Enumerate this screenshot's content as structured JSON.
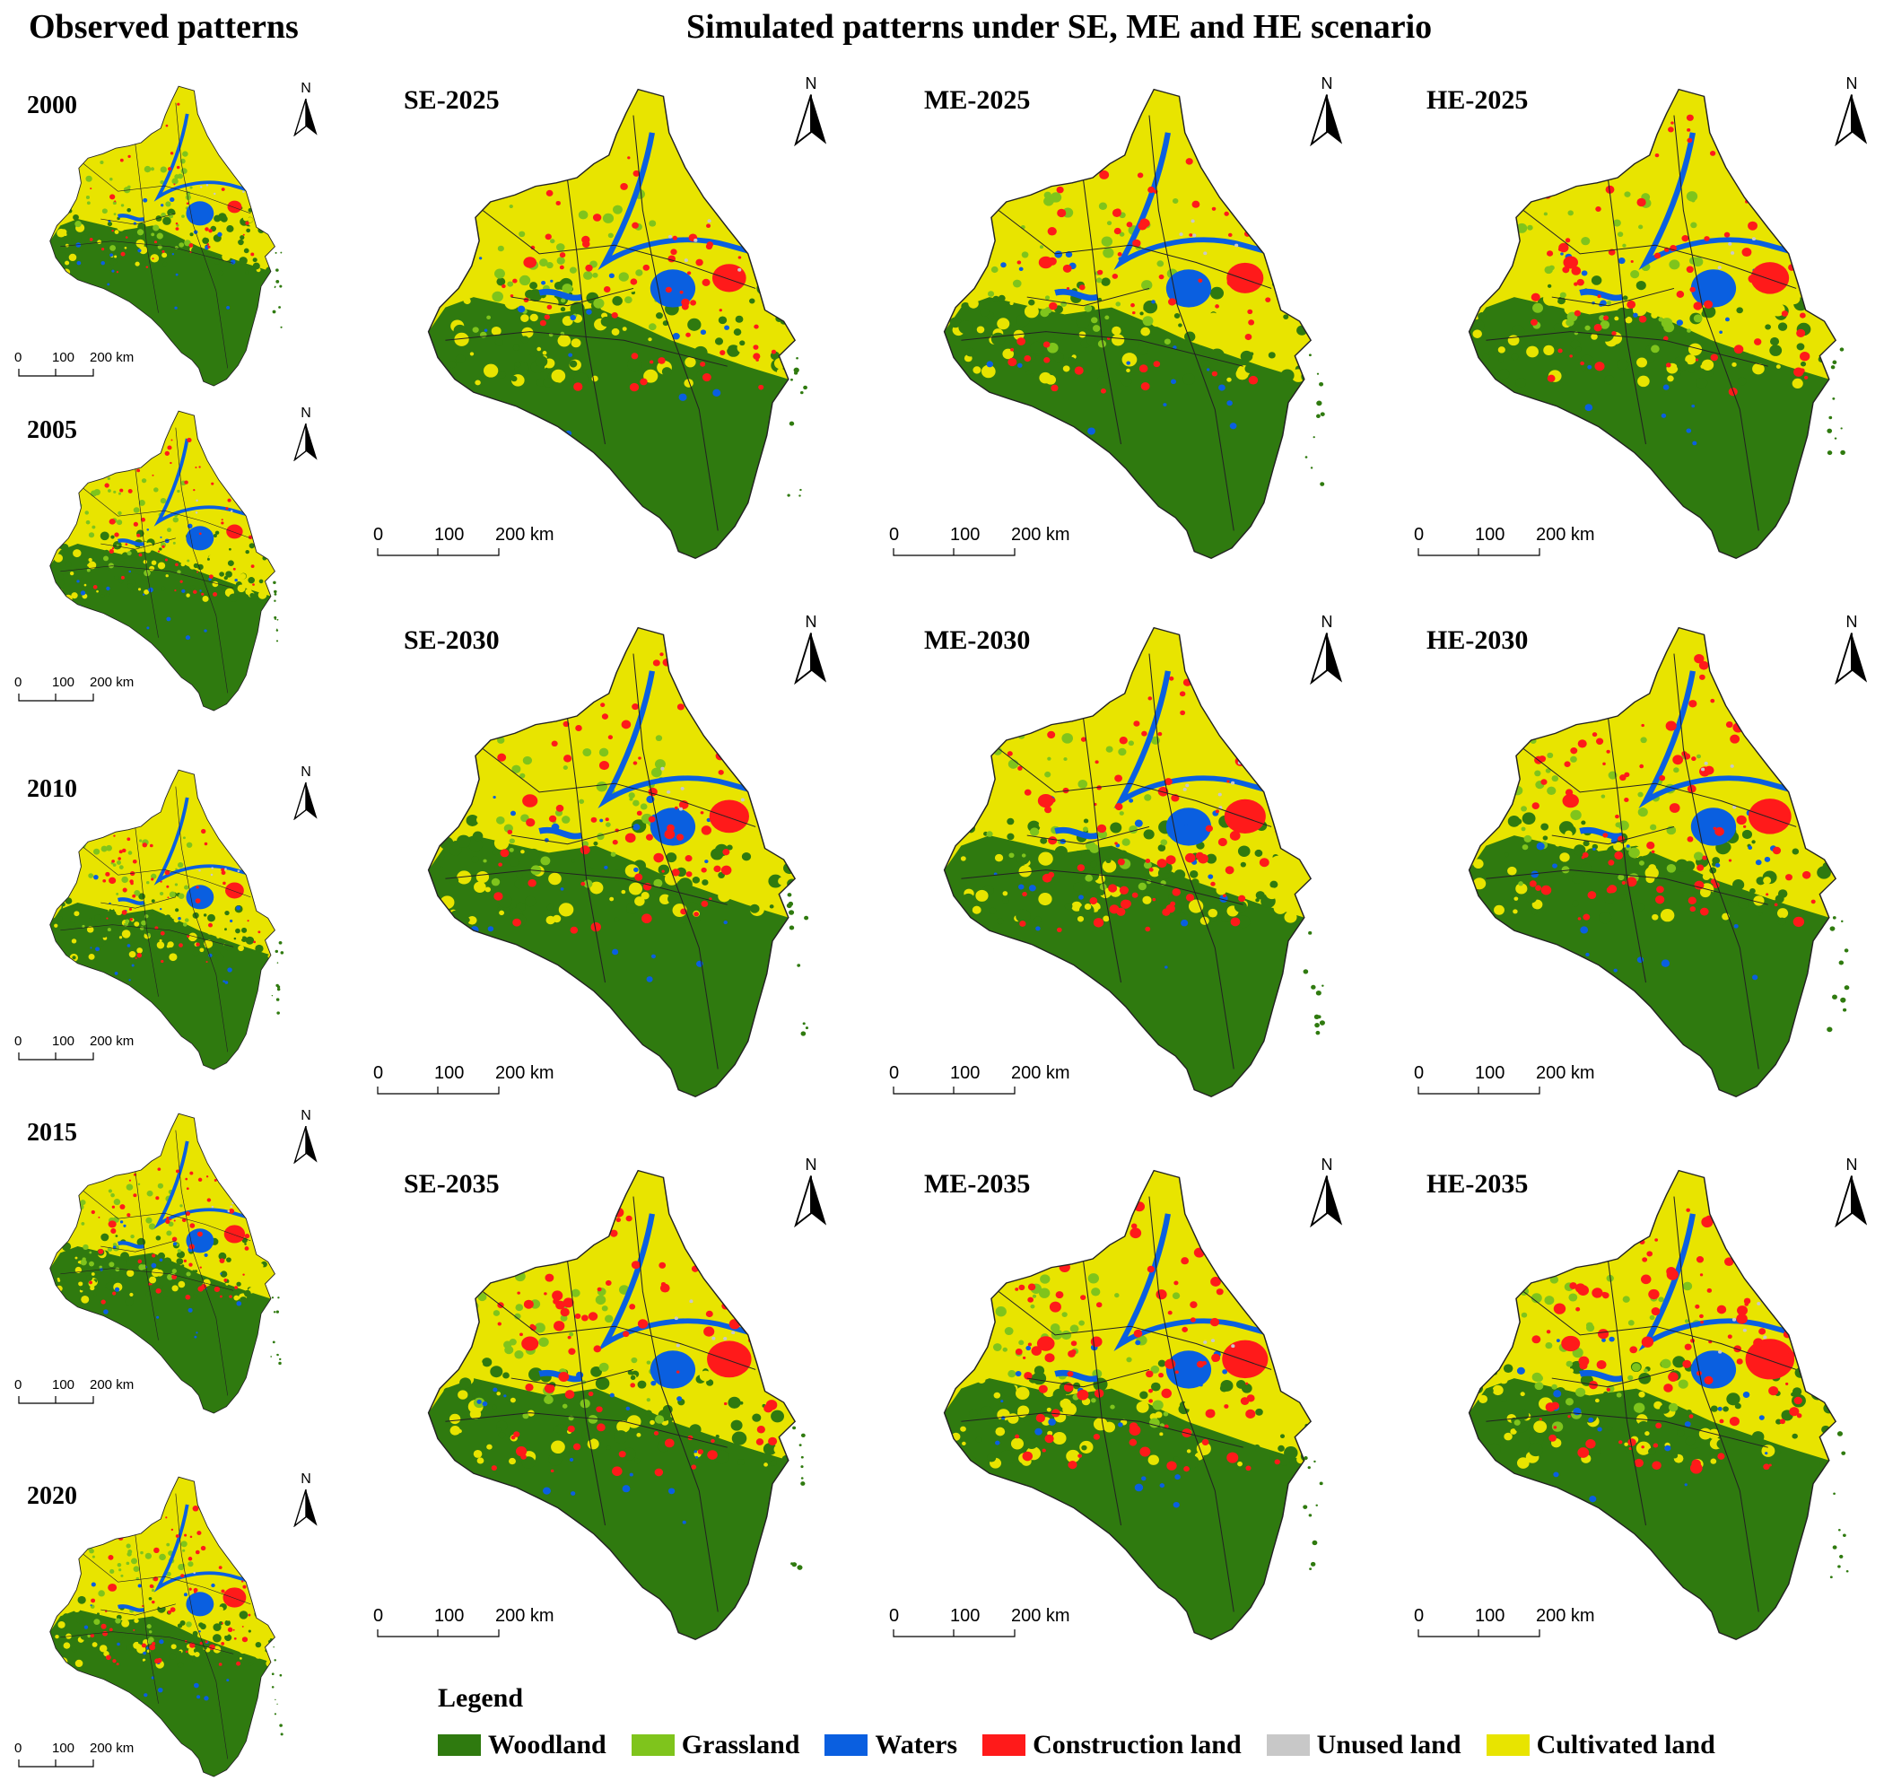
{
  "titles": {
    "observed": "Observed patterns",
    "simulated": "Simulated patterns under SE, ME and HE scenario"
  },
  "north_label": "N",
  "scale": {
    "ticks": [
      "0",
      "100",
      "200 km"
    ]
  },
  "colors": {
    "woodland": "#2f7a0f",
    "grassland": "#7fc41c",
    "waters": "#0a5fe0",
    "construction": "#ff1a1a",
    "unused": "#c8c8c8",
    "cultivated": "#e8e400"
  },
  "observed_panels": [
    {
      "label": "2000"
    },
    {
      "label": "2005"
    },
    {
      "label": "2010"
    },
    {
      "label": "2015"
    },
    {
      "label": "2020"
    }
  ],
  "simulated_panels": [
    [
      {
        "label": "SE-2025"
      },
      {
        "label": "ME-2025"
      },
      {
        "label": "HE-2025"
      }
    ],
    [
      {
        "label": "SE-2030"
      },
      {
        "label": "ME-2030"
      },
      {
        "label": "HE-2030"
      }
    ],
    [
      {
        "label": "SE-2035"
      },
      {
        "label": "ME-2035"
      },
      {
        "label": "HE-2035"
      }
    ]
  ],
  "legend": {
    "title": "Legend",
    "items": [
      {
        "label": "Woodland",
        "color": "#2f7a0f"
      },
      {
        "label": "Grassland",
        "color": "#7fc41c"
      },
      {
        "label": "Waters",
        "color": "#0a5fe0"
      },
      {
        "label": "Construction land",
        "color": "#ff1a1a"
      },
      {
        "label": "Unused land",
        "color": "#c8c8c8"
      },
      {
        "label": "Cultivated land",
        "color": "#e8e400"
      }
    ]
  }
}
